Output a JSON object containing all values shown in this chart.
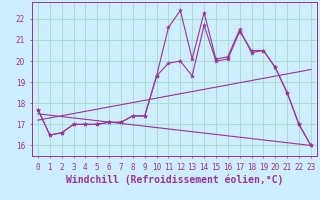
{
  "xlabel": "Windchill (Refroidissement éolien,°C)",
  "background_color": "#cceeff",
  "grid_color": "#aaddcc",
  "line_color": "#993399",
  "xlim": [
    -0.5,
    23.5
  ],
  "ylim": [
    15.5,
    22.8
  ],
  "xticks": [
    0,
    1,
    2,
    3,
    4,
    5,
    6,
    7,
    8,
    9,
    10,
    11,
    12,
    13,
    14,
    15,
    16,
    17,
    18,
    19,
    20,
    21,
    22,
    23
  ],
  "yticks": [
    16,
    17,
    18,
    19,
    20,
    21,
    22
  ],
  "series1_x": [
    0,
    1,
    2,
    3,
    4,
    5,
    6,
    7,
    8,
    9,
    10,
    11,
    12,
    13,
    14,
    15,
    16,
    17,
    18,
    19,
    20,
    21,
    22,
    23
  ],
  "series1_y": [
    17.7,
    16.5,
    16.6,
    17.0,
    17.0,
    17.0,
    17.1,
    17.1,
    17.4,
    17.4,
    19.3,
    19.9,
    20.0,
    19.3,
    21.7,
    20.0,
    20.1,
    21.4,
    20.5,
    20.5,
    19.7,
    18.5,
    17.0,
    16.0
  ],
  "series2_x": [
    0,
    1,
    2,
    3,
    4,
    5,
    6,
    7,
    8,
    9,
    10,
    11,
    12,
    13,
    14,
    15,
    16,
    17,
    18,
    19,
    20,
    21,
    22,
    23
  ],
  "series2_y": [
    17.7,
    16.5,
    16.6,
    17.0,
    17.0,
    17.0,
    17.1,
    17.1,
    17.4,
    17.4,
    19.3,
    21.6,
    22.4,
    20.1,
    22.3,
    20.1,
    20.2,
    21.5,
    20.4,
    20.5,
    19.7,
    18.5,
    17.0,
    16.0
  ],
  "series3_x": [
    0,
    23
  ],
  "series3_y": [
    17.2,
    19.6
  ],
  "series4_x": [
    0,
    23
  ],
  "series4_y": [
    17.5,
    16.0
  ],
  "tick_fontsize": 5.5,
  "xlabel_fontsize": 7.0
}
